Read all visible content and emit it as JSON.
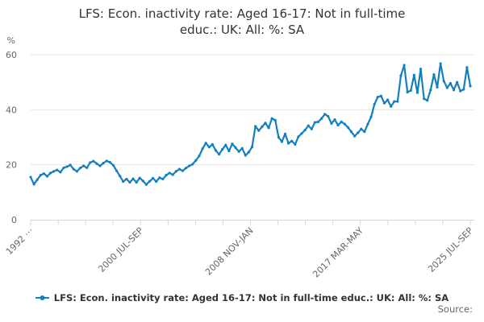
{
  "title": {
    "full": "LFS: Econ. inactivity rate: Aged 16-17: Not in full-time educ.: UK: All: %: SA",
    "line1": "LFS: Econ. inactivity rate: Aged 16-17: Not in full-time",
    "line2": "educ.: UK: All: %: SA"
  },
  "legend": {
    "label": "LFS: Econ. inactivity rate: Aged 16-17: Not in full-time educ.: UK: All: %: SA",
    "marker_color": "#1380be"
  },
  "source": {
    "label": "Source:"
  },
  "colors": {
    "series_blue": "#1380be",
    "grid": "#e6e6e6",
    "axis": "#ccd6eb",
    "title_text": "#333333",
    "tick_text": "#666666"
  },
  "chart_data": {
    "type": "line",
    "title": "LFS: Econ. inactivity rate: Aged 16-17: Not in full-time educ.: UK: All: %: SA",
    "ylabel": "%",
    "ylim": [
      0,
      60
    ],
    "yticks": [
      0,
      20,
      40,
      60
    ],
    "grid": true,
    "legend_position": "bottom",
    "x_tick_count": 17,
    "x_labeled_tick_indices": [
      0,
      4,
      8,
      12,
      16
    ],
    "x_tick_labels": [
      "1992 ⋯",
      "2000 JUL-SEP",
      "2008 NOV-JAN",
      "2017 MAR-MAY",
      "2025 JUL-SEP"
    ],
    "x_range_note": "quarterly estimates, Apr 1992 to Jul/Sep 2025",
    "series": [
      {
        "name": "LFS: Econ. inactivity rate: Aged 16-17: Not in full-time educ.: UK: All: %: SA",
        "color": "#1380be",
        "start_year": 1992.29,
        "step_years": 0.25,
        "values": [
          15.5,
          12.9,
          14.6,
          16.2,
          16.8,
          15.8,
          17.0,
          17.6,
          18.1,
          17.3,
          18.9,
          19.3,
          19.9,
          18.4,
          17.6,
          18.8,
          19.6,
          18.9,
          20.8,
          21.3,
          20.4,
          19.6,
          20.6,
          21.4,
          20.9,
          19.8,
          17.8,
          15.9,
          13.9,
          14.8,
          13.6,
          14.9,
          13.6,
          15.2,
          14.1,
          12.8,
          14.0,
          15.1,
          13.9,
          15.3,
          14.8,
          16.2,
          17.0,
          16.4,
          17.6,
          18.4,
          17.8,
          18.8,
          19.6,
          20.2,
          21.6,
          23.2,
          25.8,
          27.9,
          26.4,
          27.4,
          25.2,
          23.8,
          25.6,
          27.2,
          25.0,
          27.6,
          26.2,
          24.8,
          26.0,
          23.4,
          24.6,
          26.5,
          34.0,
          32.4,
          33.8,
          35.2,
          33.4,
          36.8,
          36.2,
          30.0,
          28.4,
          31.2,
          27.8,
          28.6,
          27.4,
          30.2,
          31.4,
          32.6,
          34.2,
          33.0,
          35.4,
          35.6,
          36.8,
          38.4,
          37.6,
          35.0,
          36.4,
          34.4,
          35.6,
          34.8,
          33.6,
          32.0,
          30.4,
          31.6,
          33.0,
          32.0,
          34.8,
          37.4,
          42.0,
          44.6,
          45.0,
          42.4,
          43.6,
          41.2,
          43.0,
          43.0,
          52.4,
          56.2,
          46.4,
          47.0,
          52.6,
          46.2,
          54.8,
          44.0,
          43.4,
          47.2,
          52.8,
          48.2,
          56.8,
          50.4,
          48.0,
          49.6,
          47.2,
          50.0,
          46.8,
          47.4,
          55.4,
          48.6
        ]
      }
    ]
  }
}
